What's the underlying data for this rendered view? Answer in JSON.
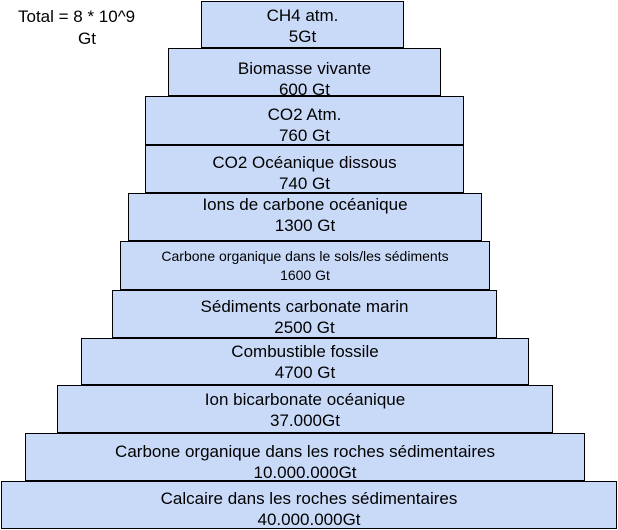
{
  "total": {
    "line1": "Total = 8 * 10^9",
    "line2": "Gt"
  },
  "tiers": [
    {
      "name": "CH4 atm.",
      "value": "5Gt"
    },
    {
      "name": "Biomasse vivante",
      "value": "600 Gt"
    },
    {
      "name": "CO2 Atm.",
      "value": "760 Gt"
    },
    {
      "name": "CO2 Océanique dissous",
      "value": "740 Gt"
    },
    {
      "name": "Ions de carbone océanique",
      "value": "1300 Gt"
    },
    {
      "name": "Carbone organique dans le sols/les sédiments",
      "value": "1600 Gt"
    },
    {
      "name": "Sédiments carbonate marin",
      "value": "2500 Gt"
    },
    {
      "name": "Combustible fossile",
      "value": "4700 Gt"
    },
    {
      "name": "Ion bicarbonate océanique",
      "value": "37.000Gt"
    },
    {
      "name": "Carbone organique dans les roches sédimentaires",
      "value": "10.000.000Gt"
    },
    {
      "name": "Calcaire dans les roches sédimentaires",
      "value": "40.000.000Gt"
    }
  ]
}
